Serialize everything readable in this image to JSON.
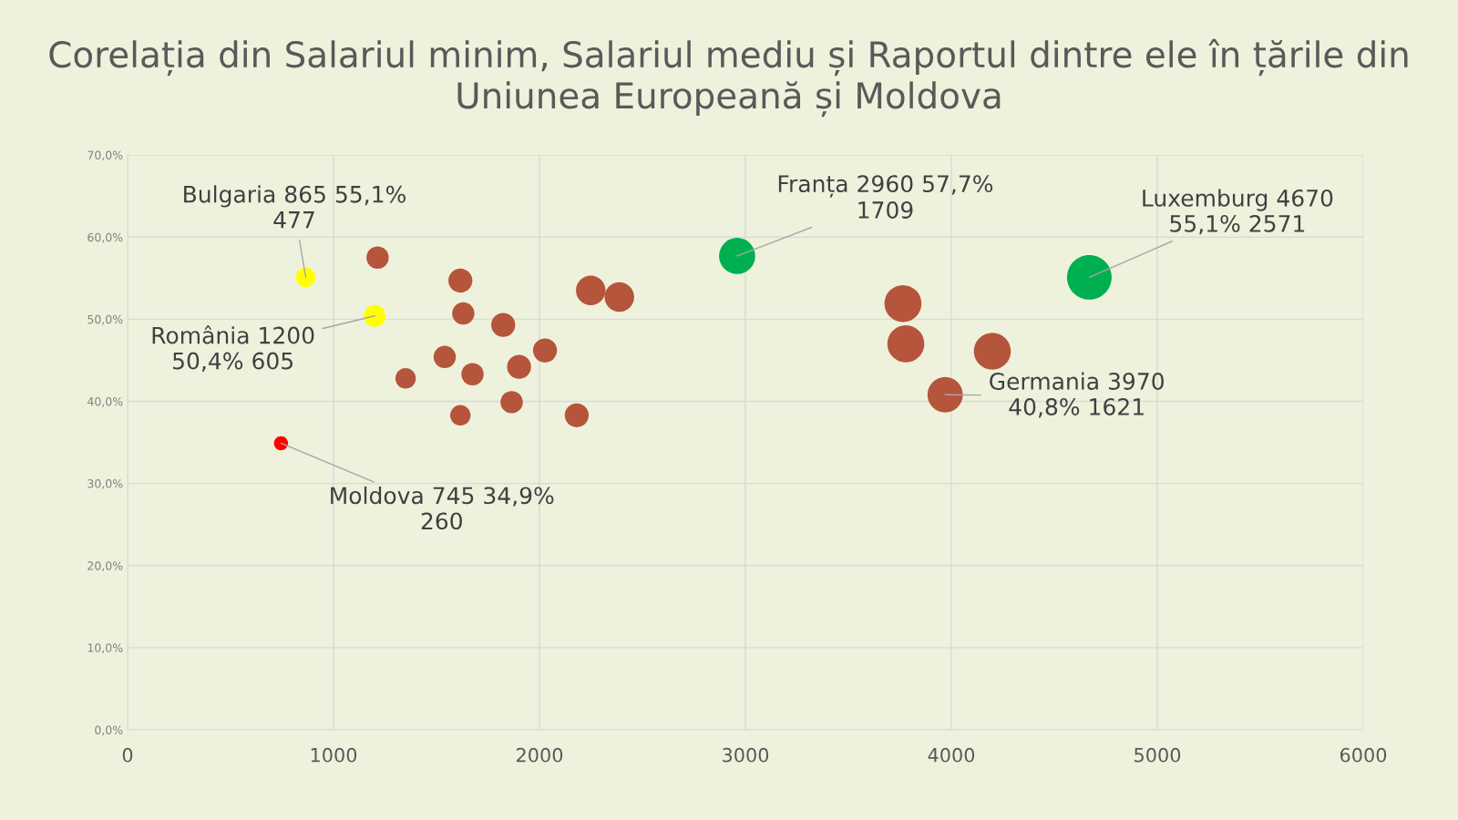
{
  "chart_data": {
    "type": "bubble",
    "title": "Corelația din Salariul minim, Salariul mediu și Raportul dintre ele în țările din Uniunea Europeană și Moldova",
    "x": [
      865,
      1200,
      745,
      2960,
      4670,
      3970,
      1214,
      1616,
      1630,
      1824,
      1540,
      1350,
      1675,
      1901,
      2027,
      1865,
      1616,
      2181,
      2249,
      2388,
      3765,
      3779,
      4199
    ],
    "values": [
      55.1,
      50.4,
      34.9,
      57.7,
      55.1,
      40.8,
      57.5,
      54.7,
      50.7,
      49.3,
      45.4,
      42.8,
      43.3,
      44.2,
      46.2,
      39.9,
      38.3,
      38.3,
      53.5,
      52.7,
      51.9,
      47.0,
      46.1
    ],
    "sizes": [
      0.19,
      0.24,
      0.1,
      0.66,
      1,
      0.63,
      0.25,
      0.29,
      0.25,
      0.29,
      0.25,
      0.21,
      0.25,
      0.29,
      0.29,
      0.25,
      0.21,
      0.29,
      0.44,
      0.44,
      0.69,
      0.69,
      0.69
    ],
    "colors": [
      "#ffff00",
      "#ffff00",
      "#ff0000",
      "#00b050",
      "#00b050",
      "#b5553c",
      "#b5553c",
      "#b5553c",
      "#b5553c",
      "#b5553c",
      "#b5553c",
      "#b5553c",
      "#b5553c",
      "#b5553c",
      "#b5553c",
      "#b5553c",
      "#b5553c",
      "#b5553c",
      "#b5553c",
      "#b5553c",
      "#b5553c",
      "#b5553c",
      "#b5553c"
    ],
    "annotations": [
      {
        "text": "Bulgaria 865 55,1%\n477",
        "x": 865,
        "y": 55.1
      },
      {
        "text": "România 1200\n50,4% 605",
        "x": 1200,
        "y": 50.4
      },
      {
        "text": "Moldova 745 34,9%\n260",
        "x": 745,
        "y": 34.9
      },
      {
        "text": "Franța 2960 57,7%\n1709",
        "x": 2960,
        "y": 57.7
      },
      {
        "text": "Luxemburg 4670\n55,1% 2571",
        "x": 4670,
        "y": 55.1
      },
      {
        "text": "Germania 3970\n40,8% 1621",
        "x": 3970,
        "y": 40.8
      }
    ],
    "xlim": [
      0,
      6000
    ],
    "xticks": [
      0,
      1000,
      2000,
      3000,
      4000,
      5000,
      6000
    ],
    "ylim": [
      0,
      70
    ],
    "yticks": [
      {
        "value": 0,
        "label": "0,0%"
      },
      {
        "value": 10,
        "label": "10,0%"
      },
      {
        "value": 20,
        "label": "20,0%"
      },
      {
        "value": 30,
        "label": "30,0%"
      },
      {
        "value": 40,
        "label": "40,0%"
      },
      {
        "value": 50,
        "label": "50,0%"
      },
      {
        "value": 60,
        "label": "60,0%"
      },
      {
        "value": 70,
        "label": "70,0%"
      }
    ],
    "grid": true
  }
}
